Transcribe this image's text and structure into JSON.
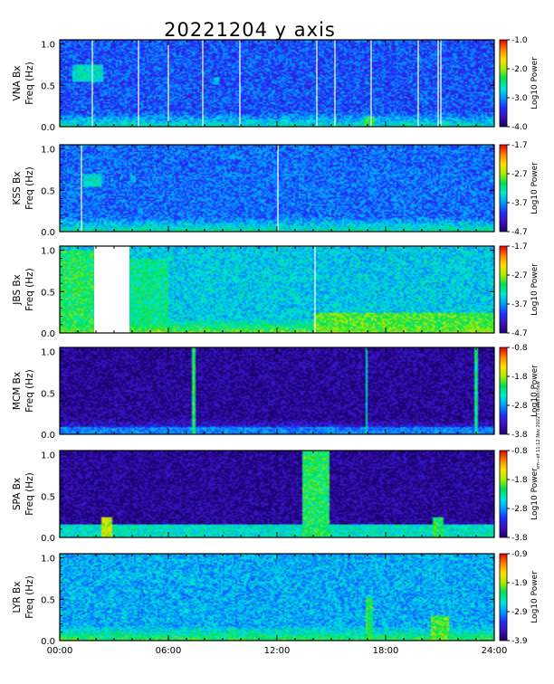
{
  "title": "20221204 y axis",
  "side_note": "sm—ef 11:12 Nov 2022 / datafiles/new",
  "x_axis": {
    "range_hours": [
      0,
      24
    ],
    "ticks": [
      {
        "hour": 0,
        "label": "00:00"
      },
      {
        "hour": 6,
        "label": "06:00"
      },
      {
        "hour": 12,
        "label": "12:00"
      },
      {
        "hour": 18,
        "label": "18:00"
      },
      {
        "hour": 24,
        "label": "24:00"
      }
    ]
  },
  "colors": {
    "colormap": [
      "#1c0070",
      "#3a10b8",
      "#2030ff",
      "#009cff",
      "#00e8d8",
      "#00e050",
      "#a8ec00",
      "#ffe000",
      "#ff8000",
      "#e00000"
    ],
    "gap": "#ffffff",
    "axis": "#000000"
  },
  "chart_data": {
    "type": "heatmap",
    "x_unit": "UT hours",
    "panels": [
      {
        "station": "VNA Bx",
        "ylabel": "VNA Bx",
        "ylabel2": "Freq (Hz)",
        "yticks": [
          "0.0",
          "0.5",
          "1.0"
        ],
        "ylim": [
          0,
          1.05
        ],
        "colorbar_label": "Log10 Power",
        "colorbar_range": [
          -4.0,
          -1.0
        ],
        "colorbar_ticks": [
          "-1.0",
          "-2.0",
          "-3.0",
          "-4.0"
        ],
        "background_level": 0.25,
        "white_lines_hours": [
          1.8,
          4.35,
          6.0,
          7.9,
          9.95,
          14.2,
          15.2,
          17.2,
          19.8,
          20.9,
          21.05
        ],
        "gaps_hours": [],
        "features": [
          {
            "t0": 0.7,
            "t1": 2.4,
            "f0": 0.55,
            "f1": 0.75,
            "level": 0.45
          },
          {
            "t0": 16.8,
            "t1": 17.4,
            "f0": 0.0,
            "f1": 0.12,
            "level": 0.55
          },
          {
            "t0": 8.5,
            "t1": 8.8,
            "f0": 0.5,
            "f1": 0.6,
            "level": 0.4
          }
        ]
      },
      {
        "station": "KSS Bx",
        "ylabel": "KSS Bx",
        "ylabel2": "Freq (Hz)",
        "yticks": [
          "0.0",
          "0.5",
          "1.0"
        ],
        "ylim": [
          0,
          1.05
        ],
        "colorbar_label": "Log10 Power",
        "colorbar_range": [
          -4.7,
          -1.7
        ],
        "colorbar_ticks": [
          "-1.7",
          "-2.7",
          "-3.7",
          "-4.7"
        ],
        "background_level": 0.28,
        "white_lines_hours": [
          1.2,
          12.05
        ],
        "gaps_hours": [],
        "features": [
          {
            "t0": 1.3,
            "t1": 2.3,
            "f0": 0.55,
            "f1": 0.7,
            "level": 0.45
          },
          {
            "t0": 3.9,
            "t1": 4.2,
            "f0": 0.6,
            "f1": 0.68,
            "level": 0.4
          }
        ]
      },
      {
        "station": "JBS Bx",
        "ylabel": "JBS Bx",
        "ylabel2": "Freq (Hz)",
        "yticks": [
          "0.0",
          "0.5",
          "1.0"
        ],
        "ylim": [
          0,
          1.05
        ],
        "colorbar_label": "Log10 Power",
        "colorbar_range": [
          -4.7,
          -1.7
        ],
        "colorbar_ticks": [
          "-1.7",
          "-2.7",
          "-3.7",
          "-4.7"
        ],
        "background_level": 0.4,
        "white_lines_hours": [
          14.1
        ],
        "gaps_hours": [
          [
            1.9,
            3.85
          ]
        ],
        "features": [
          {
            "t0": 0.0,
            "t1": 1.9,
            "f0": 0.0,
            "f1": 1.0,
            "level": 0.55
          },
          {
            "t0": 3.85,
            "t1": 6.0,
            "f0": 0.0,
            "f1": 0.9,
            "level": 0.5
          },
          {
            "t0": 14.0,
            "t1": 24.0,
            "f0": 0.0,
            "f1": 0.25,
            "level": 0.6
          }
        ]
      },
      {
        "station": "MCM Bx",
        "ylabel": "MCM Bx",
        "ylabel2": "Freq (Hz)",
        "yticks": [
          "0.0",
          "0.5",
          "1.0"
        ],
        "ylim": [
          0,
          1.05
        ],
        "colorbar_label": "Log10 Power",
        "colorbar_range": [
          -3.8,
          -0.8
        ],
        "colorbar_ticks": [
          "-0.8",
          "-1.8",
          "-2.8",
          "-3.8"
        ],
        "background_level": 0.05,
        "white_lines_hours": [],
        "gaps_hours": [],
        "features": [
          {
            "t0": 7.3,
            "t1": 7.45,
            "f0": 0.0,
            "f1": 1.05,
            "level": 0.55
          },
          {
            "t0": 16.9,
            "t1": 17.0,
            "f0": 0.0,
            "f1": 1.05,
            "level": 0.45
          },
          {
            "t0": 22.95,
            "t1": 23.05,
            "f0": 0.0,
            "f1": 1.05,
            "level": 0.5
          },
          {
            "t0": 0.0,
            "t1": 24.0,
            "f0": 0.0,
            "f1": 0.08,
            "level": 0.3
          }
        ]
      },
      {
        "station": "SPA Bx",
        "ylabel": "SPA Bx",
        "ylabel2": "Freq (Hz)",
        "yticks": [
          "0.0",
          "0.5",
          "1.0"
        ],
        "ylim": [
          0,
          1.05
        ],
        "colorbar_label": "Log10 Power",
        "colorbar_range": [
          -3.8,
          -0.8
        ],
        "colorbar_ticks": [
          "-0.8",
          "-1.8",
          "-2.8",
          "-3.8"
        ],
        "background_level": 0.05,
        "white_lines_hours": [],
        "gaps_hours": [],
        "features": [
          {
            "t0": 13.4,
            "t1": 14.9,
            "f0": 0.0,
            "f1": 1.05,
            "level": 0.55
          },
          {
            "t0": 2.3,
            "t1": 2.9,
            "f0": 0.0,
            "f1": 0.25,
            "level": 0.7
          },
          {
            "t0": 0.0,
            "t1": 24.0,
            "f0": 0.0,
            "f1": 0.15,
            "level": 0.45
          },
          {
            "t0": 20.6,
            "t1": 21.2,
            "f0": 0.0,
            "f1": 0.25,
            "level": 0.55
          }
        ]
      },
      {
        "station": "LYR Bx",
        "ylabel": "LYR Bx",
        "ylabel2": "Freq (Hz)",
        "yticks": [
          "0.0",
          "0.5",
          "1.0"
        ],
        "ylim": [
          0,
          1.05
        ],
        "colorbar_label": "Log10 Power",
        "colorbar_range": [
          -3.9,
          -0.9
        ],
        "colorbar_ticks": [
          "-0.9",
          "-1.9",
          "-2.9",
          "-3.9"
        ],
        "background_level": 0.36,
        "white_lines_hours": [],
        "gaps_hours": [],
        "features": [
          {
            "t0": 16.9,
            "t1": 17.3,
            "f0": 0.0,
            "f1": 0.5,
            "level": 0.55
          },
          {
            "t0": 20.5,
            "t1": 21.5,
            "f0": 0.0,
            "f1": 0.3,
            "level": 0.6
          },
          {
            "t0": 9.3,
            "t1": 9.7,
            "f0": 0.0,
            "f1": 0.15,
            "level": 0.5
          }
        ]
      }
    ]
  }
}
